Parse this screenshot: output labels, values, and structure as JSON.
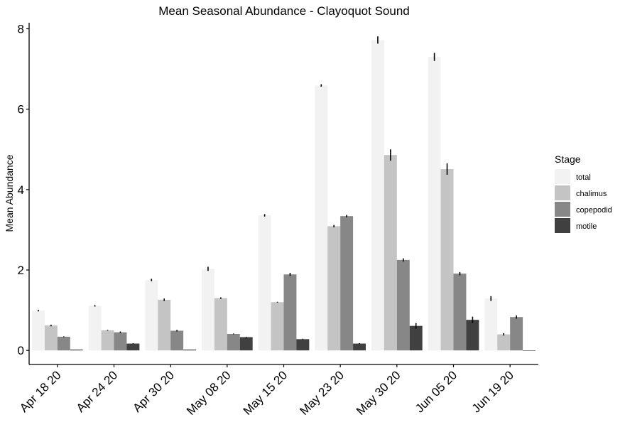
{
  "chart_data": {
    "type": "bar",
    "title": "Mean Seasonal Abundance - Clayoquot Sound",
    "xlabel": "",
    "ylabel": "Mean Abundance",
    "ylim": [
      -0.35,
      8.15
    ],
    "yticks": [
      "0",
      "2",
      "4",
      "6",
      "8"
    ],
    "grid": false,
    "legend_position": "right",
    "legend_title": "Stage",
    "categories": [
      "Apr 18 20",
      "Apr 24 20",
      "Apr 30 20",
      "May 08 20",
      "May 15 20",
      "May 23 20",
      "May 30 20",
      "Jun 05 20",
      "Jun 19 20"
    ],
    "series": [
      {
        "name": "total",
        "color": "#f2f2f2",
        "values": [
          0.99,
          1.11,
          1.75,
          2.03,
          3.36,
          6.59,
          7.72,
          7.3,
          1.29
        ],
        "errors": [
          0.02,
          0.02,
          0.03,
          0.05,
          0.03,
          0.03,
          0.09,
          0.1,
          0.06
        ]
      },
      {
        "name": "chalimus",
        "color": "#c4c4c4",
        "values": [
          0.62,
          0.5,
          1.26,
          1.3,
          1.2,
          3.09,
          4.86,
          4.51,
          0.4
        ],
        "errors": [
          0.02,
          0.01,
          0.03,
          0.02,
          0.01,
          0.03,
          0.14,
          0.14,
          0.03
        ]
      },
      {
        "name": "copepodid",
        "color": "#878787",
        "values": [
          0.34,
          0.45,
          0.49,
          0.41,
          1.89,
          3.34,
          2.25,
          1.91,
          0.83
        ],
        "errors": [
          0.01,
          0.02,
          0.02,
          0.01,
          0.04,
          0.03,
          0.04,
          0.04,
          0.04
        ]
      },
      {
        "name": "motile",
        "color": "#404040",
        "values": [
          0.02,
          0.17,
          0.02,
          0.33,
          0.28,
          0.17,
          0.61,
          0.76,
          0.0
        ],
        "errors": [
          0.0,
          0.01,
          0.0,
          0.01,
          0.01,
          0.01,
          0.07,
          0.08,
          0.0
        ]
      }
    ]
  }
}
